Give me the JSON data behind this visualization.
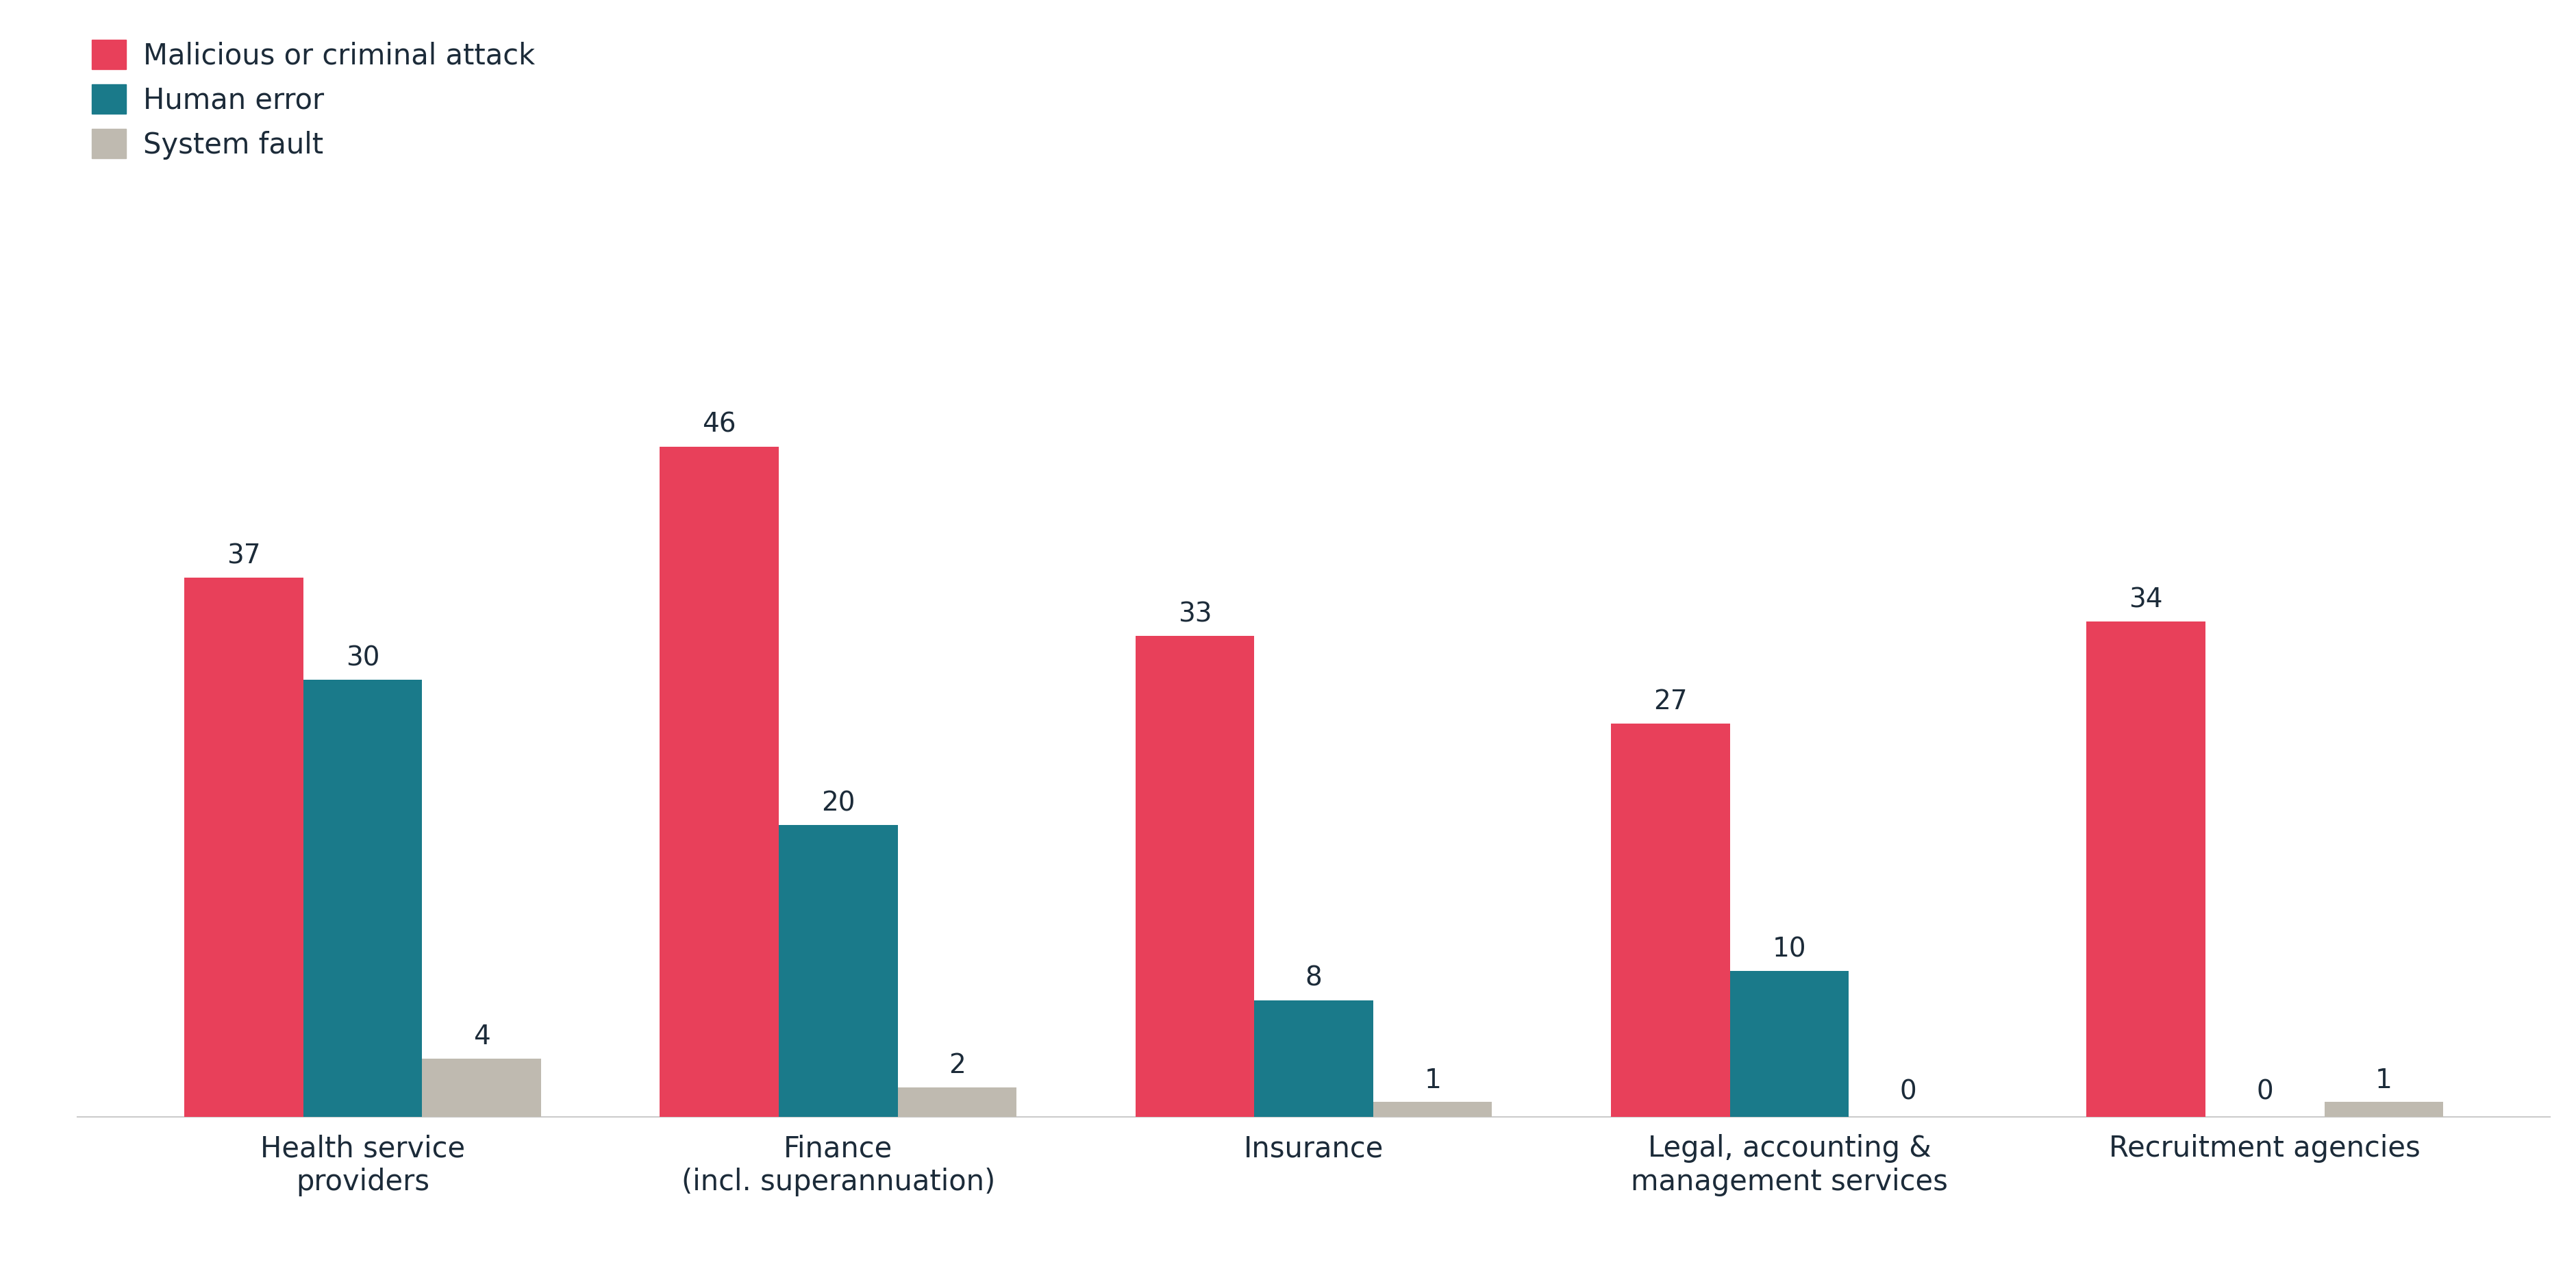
{
  "categories": [
    "Health service\nproviders",
    "Finance\n(incl. superannuation)",
    "Insurance",
    "Legal, accounting &\nmanagement services",
    "Recruitment agencies"
  ],
  "series": [
    {
      "name": "Malicious or criminal attack",
      "color": "#E8405A",
      "values": [
        37,
        46,
        33,
        27,
        34
      ]
    },
    {
      "name": "Human error",
      "color": "#1A7A8A",
      "values": [
        30,
        20,
        8,
        10,
        0
      ]
    },
    {
      "name": "System fault",
      "color": "#BFBAB0",
      "values": [
        4,
        2,
        1,
        0,
        1
      ]
    }
  ],
  "ylim": [
    0,
    54
  ],
  "bar_width": 0.25,
  "background_color": "#FFFFFF",
  "text_color": "#1C2B39",
  "tick_fontsize": 30,
  "legend_fontsize": 30,
  "value_fontsize": 28,
  "spine_color": "#CCCCCC"
}
